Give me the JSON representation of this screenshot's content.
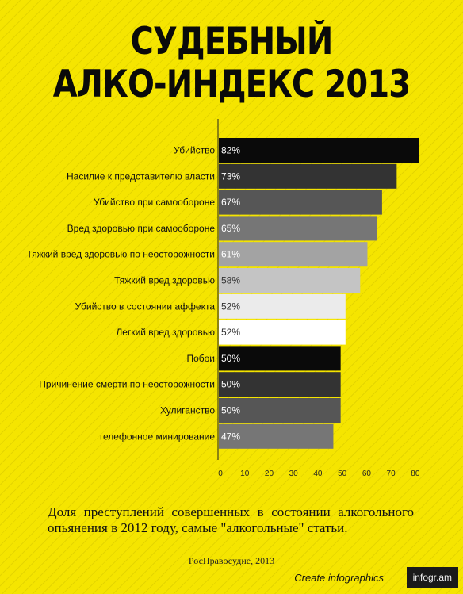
{
  "title_line1": "СУДЕБНЫЙ",
  "title_line2": "АЛКО-ИНДЕКС 2013",
  "chart_data": {
    "type": "bar",
    "orientation": "horizontal",
    "categories": [
      "Убийство",
      "Насилие к представителю власти",
      "Убийство при самообороне",
      "Вред здоровью при самообороне",
      "Тяжкий вред здоровью по неосторожности",
      "Тяжкий вред здоровью",
      "Убийство в состоянии аффекта",
      "Легкий вред здоровью",
      "Побои",
      "Причинение смерти по неосторожности",
      "Хулиганство",
      "телефонное минирование"
    ],
    "values": [
      82,
      73,
      67,
      65,
      61,
      58,
      52,
      52,
      50,
      50,
      50,
      47
    ],
    "value_suffix": "%",
    "bar_colors": [
      "#0a0a0a",
      "#333333",
      "#565656",
      "#767676",
      "#a3a3a3",
      "#c4c4c4",
      "#ebebeb",
      "#ffffff",
      "#0a0a0a",
      "#333333",
      "#565656",
      "#767676"
    ],
    "label_colors": [
      "#ffffff",
      "#ffffff",
      "#ffffff",
      "#ffffff",
      "#ffffff",
      "#333333",
      "#333333",
      "#333333",
      "#ffffff",
      "#ffffff",
      "#ffffff",
      "#ffffff"
    ],
    "xticks": [
      0,
      10,
      20,
      30,
      40,
      50,
      60,
      70,
      80
    ],
    "xlim": [
      0,
      82
    ]
  },
  "note": "Доля преступлений совершенных в состоянии алкогольного опьянения в 2012 году, самые \"алкогольные\" статьи.",
  "source": "РосПравосудие, 2013",
  "footer": {
    "create_text": "Create infographics",
    "logo_text": "infogr.am"
  }
}
